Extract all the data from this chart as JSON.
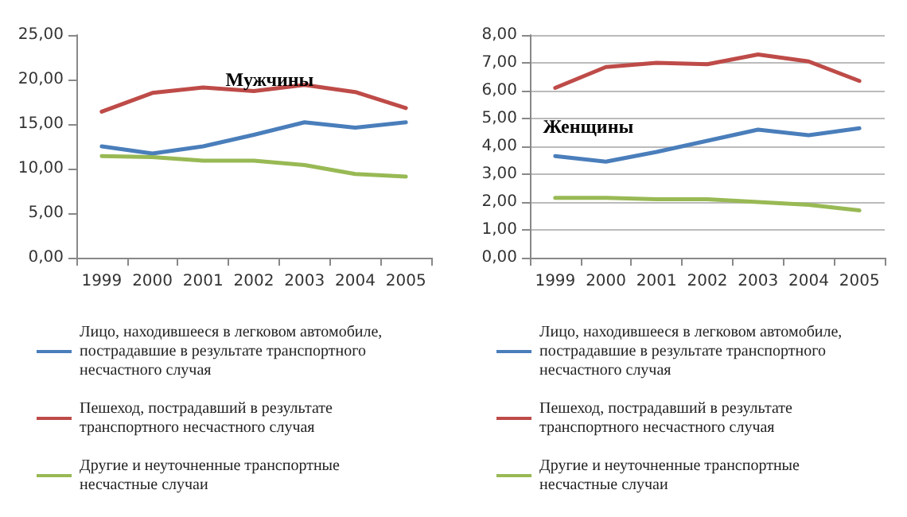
{
  "chart_data": [
    {
      "type": "line",
      "title": "Мужчины",
      "categories": [
        "1999",
        "2000",
        "2001",
        "2002",
        "2003",
        "2004",
        "2005"
      ],
      "ylim": [
        0,
        25
      ],
      "yticks": [
        {
          "value": 0,
          "label": "0,00"
        },
        {
          "value": 5,
          "label": "5,00"
        },
        {
          "value": 10,
          "label": "10,00"
        },
        {
          "value": 15,
          "label": "15,00"
        },
        {
          "value": 20,
          "label": "20,00"
        },
        {
          "value": 25,
          "label": "25,00"
        }
      ],
      "grid": false,
      "legend": "bottom",
      "marker": "none",
      "series": [
        {
          "name": "Лицо, находившееся в легковом автомобиле, пострадавшие в результате транспортного несчастного случая",
          "color": "#4a7ebb",
          "values": [
            12.5,
            11.7,
            12.5,
            13.8,
            15.2,
            14.6,
            15.2
          ]
        },
        {
          "name": "Пешеход, пострадавший в результате транспортного несчастного случая",
          "color": "#be4b48",
          "values": [
            16.4,
            18.5,
            19.1,
            18.7,
            19.4,
            18.6,
            16.8
          ]
        },
        {
          "name": "Другие и неуточненные транспортные несчастные случаи",
          "color": "#98b954",
          "values": [
            11.4,
            11.3,
            10.9,
            10.9,
            10.4,
            9.4,
            9.1
          ]
        }
      ]
    },
    {
      "type": "line",
      "title": "Женщины",
      "categories": [
        "1999",
        "2000",
        "2001",
        "2002",
        "2003",
        "2004",
        "2005"
      ],
      "ylim": [
        0,
        8
      ],
      "yticks": [
        {
          "value": 0,
          "label": "0,00"
        },
        {
          "value": 1,
          "label": "1,00"
        },
        {
          "value": 2,
          "label": "2,00"
        },
        {
          "value": 3,
          "label": "3,00"
        },
        {
          "value": 4,
          "label": "4,00"
        },
        {
          "value": 5,
          "label": "5,00"
        },
        {
          "value": 6,
          "label": "6,00"
        },
        {
          "value": 7,
          "label": "7,00"
        },
        {
          "value": 8,
          "label": "8,00"
        }
      ],
      "grid": "y",
      "legend": "bottom",
      "marker": "none",
      "series": [
        {
          "name": "Лицо, находившееся в легковом автомобиле, пострадавшие в результате транспортного несчастного случая",
          "color": "#4a7ebb",
          "values": [
            3.65,
            3.45,
            3.8,
            4.2,
            4.6,
            4.4,
            4.65
          ]
        },
        {
          "name": "Пешеход, пострадавший в результате транспортного несчастного случая",
          "color": "#be4b48",
          "values": [
            6.1,
            6.85,
            7.0,
            6.95,
            7.3,
            7.05,
            6.35
          ]
        },
        {
          "name": "Другие и неуточненные транспортные несчастные случаи",
          "color": "#98b954",
          "values": [
            2.15,
            2.15,
            2.1,
            2.1,
            2.0,
            1.9,
            1.7
          ]
        }
      ]
    }
  ]
}
